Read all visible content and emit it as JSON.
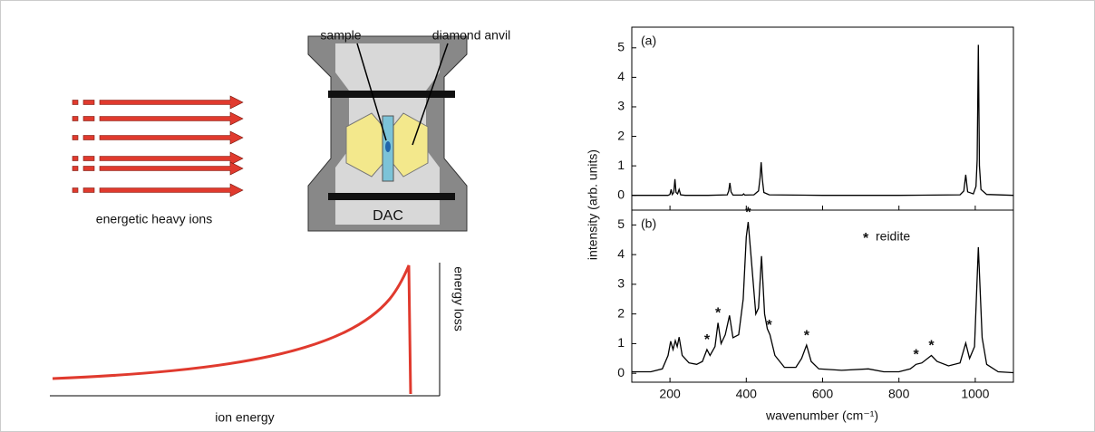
{
  "diagram": {
    "ion_label": "energetic heavy ions",
    "sample_label": "sample",
    "anvil_label": "diamond anvil",
    "dac_label": "DAC"
  },
  "bragg": {
    "x_label": "ion energy",
    "y_label": "energy loss"
  },
  "figure": {
    "y_label": "intensity (arb. units)",
    "x_label": "wavenumber (cm⁻¹)"
  },
  "chart_data": [
    {
      "type": "line",
      "panel_label": "(a)",
      "color": "#000000",
      "show_xticklabels": false,
      "x": [
        100,
        150,
        195,
        200,
        203,
        206,
        210,
        213,
        216,
        220,
        224,
        228,
        240,
        300,
        350,
        354,
        357,
        360,
        365,
        390,
        393,
        396,
        420,
        432,
        436,
        439,
        442,
        446,
        460,
        600,
        800,
        960,
        970,
        975,
        980,
        995,
        1002,
        1005,
        1008,
        1011,
        1015,
        1030,
        1100
      ],
      "values": [
        0,
        0,
        0,
        0.03,
        0.2,
        0.03,
        0.1,
        0.55,
        0.1,
        0.05,
        0.2,
        0.02,
        0,
        0,
        0.02,
        0.15,
        0.42,
        0.12,
        0.01,
        0.01,
        0.05,
        0.01,
        0.02,
        0.15,
        0.6,
        1.12,
        0.55,
        0.1,
        0.02,
        0,
        0,
        0.02,
        0.15,
        0.7,
        0.12,
        0.05,
        0.3,
        1.2,
        5.1,
        1.0,
        0.2,
        0.03,
        0
      ],
      "xlim": [
        100,
        1100
      ],
      "xticks": [
        200,
        400,
        600,
        800,
        1000
      ],
      "ylim": [
        -0.5,
        5.7
      ],
      "yticks": [
        0,
        1,
        2,
        3,
        4,
        5
      ]
    },
    {
      "type": "line",
      "panel_label": "(b)",
      "color": "#000000",
      "show_xticklabels": true,
      "x": [
        100,
        150,
        180,
        195,
        202,
        208,
        214,
        219,
        224,
        232,
        250,
        270,
        285,
        297,
        305,
        318,
        326,
        334,
        345,
        356,
        365,
        380,
        392,
        400,
        405,
        412,
        425,
        432,
        440,
        448,
        455,
        462,
        475,
        500,
        530,
        545,
        558,
        570,
        590,
        650,
        720,
        760,
        800,
        830,
        845,
        860,
        885,
        900,
        930,
        960,
        975,
        985,
        998,
        1008,
        1018,
        1030,
        1060,
        1100
      ],
      "values": [
        0.05,
        0.05,
        0.15,
        0.6,
        1.08,
        0.8,
        1.1,
        0.9,
        1.22,
        0.6,
        0.35,
        0.3,
        0.4,
        0.8,
        0.6,
        0.9,
        1.7,
        1.0,
        1.3,
        1.95,
        1.2,
        1.3,
        2.5,
        4.6,
        5.1,
        4.0,
        2.0,
        2.2,
        3.95,
        2.0,
        1.5,
        1.3,
        0.6,
        0.2,
        0.2,
        0.5,
        0.95,
        0.4,
        0.15,
        0.1,
        0.15,
        0.05,
        0.05,
        0.15,
        0.3,
        0.35,
        0.6,
        0.4,
        0.25,
        0.35,
        1.02,
        0.5,
        0.9,
        4.25,
        1.2,
        0.3,
        0.05,
        0.02
      ],
      "markers": {
        "x": [
          297,
          326,
          405,
          460,
          558,
          845,
          885
        ],
        "y": [
          0.8,
          1.7,
          5.1,
          1.3,
          0.95,
          0.3,
          0.6
        ]
      },
      "legend": {
        "symbol": "*",
        "label": "reidite"
      },
      "xlim": [
        100,
        1100
      ],
      "xticks": [
        200,
        400,
        600,
        800,
        1000
      ],
      "ylim": [
        -0.3,
        5.5
      ],
      "yticks": [
        0,
        1,
        2,
        3,
        4,
        5
      ]
    }
  ]
}
